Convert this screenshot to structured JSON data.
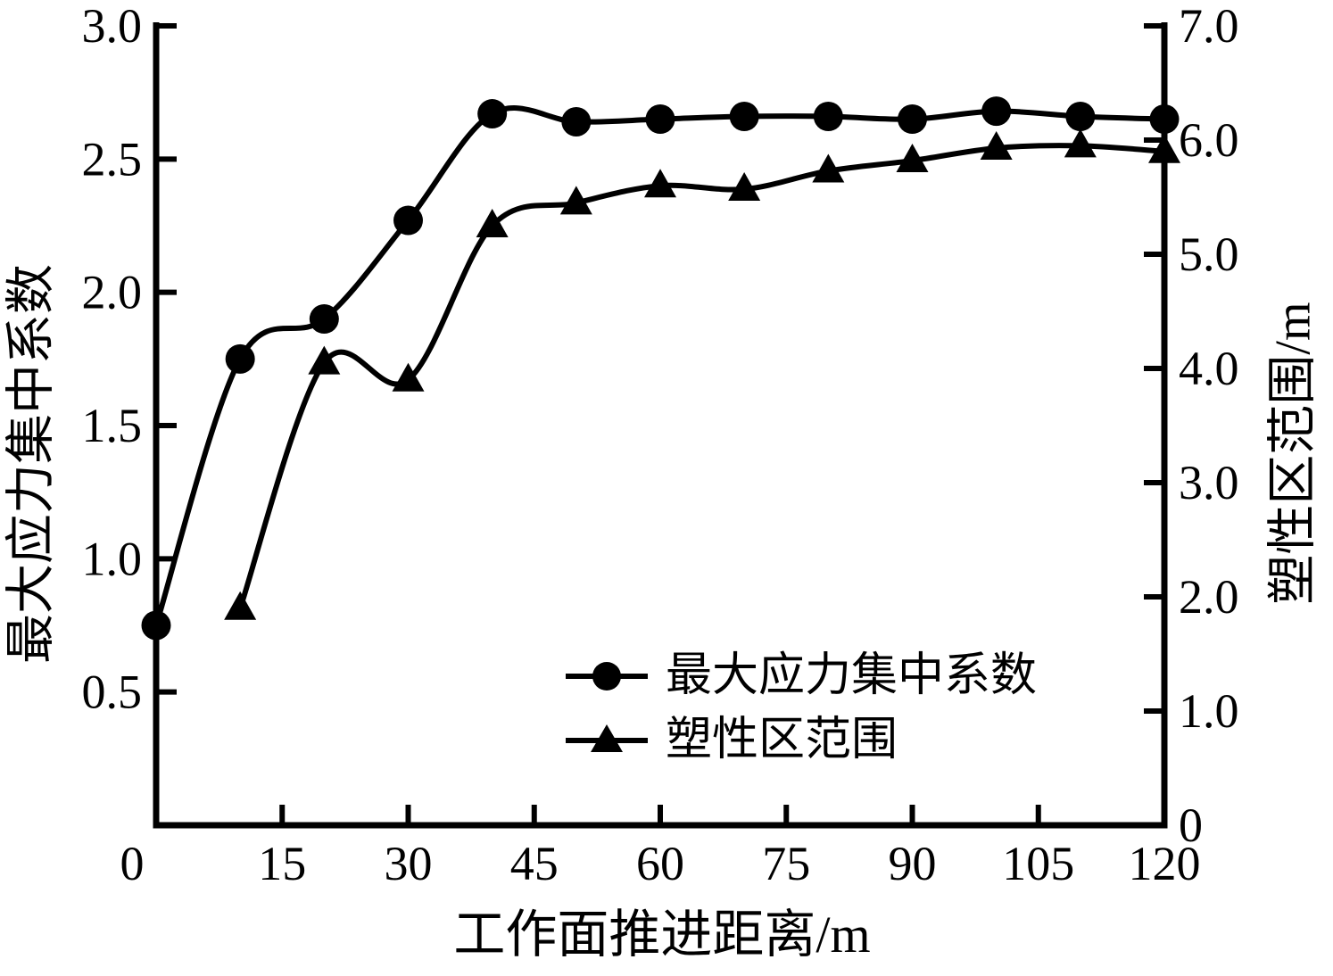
{
  "figure": {
    "background_color": "#ffffff",
    "ink_color": "#000000"
  },
  "chart_data": {
    "type": "line",
    "title": "",
    "xlabel": "工作面推进距离/m",
    "ylabel_left": "最大应力集中系数",
    "ylabel_right": "塑性区范围/m",
    "grid": "off",
    "spines": [
      "left",
      "right",
      "bottom"
    ],
    "tick_direction": "in",
    "x_axis": {
      "min": 0,
      "max": 120,
      "tick_labels": [
        "0",
        "15",
        "30",
        "45",
        "60",
        "75",
        "90",
        "105",
        "120"
      ]
    },
    "y_axis_left": {
      "min": 0,
      "max": 3.0,
      "tick_labels": [
        "3.0",
        "2.5",
        "2.0",
        "1.5",
        "1.0",
        "0.5"
      ]
    },
    "y_axis_right": {
      "min": 0,
      "max": 7.0,
      "tick_labels": [
        "7.0",
        "6.0",
        "5.0",
        "4.0",
        "3.0",
        "2.0",
        "1.0",
        "0"
      ]
    },
    "legend": {
      "position": "inside-lower-right",
      "entries": [
        {
          "marker": "filled-circle",
          "label": "最大应力集中系数"
        },
        {
          "marker": "filled-triangle",
          "label": "塑性区范围"
        }
      ]
    },
    "series": [
      {
        "name": "最大应力集中系数",
        "axis": "left",
        "marker": "filled-circle",
        "line_style": "solid",
        "color": "#000000",
        "points": [
          [
            0,
            0.75
          ],
          [
            10,
            1.75
          ],
          [
            20,
            1.9
          ],
          [
            30,
            2.27
          ],
          [
            40,
            2.67
          ],
          [
            50,
            2.64
          ],
          [
            60,
            2.65
          ],
          [
            70,
            2.66
          ],
          [
            80,
            2.66
          ],
          [
            90,
            2.65
          ],
          [
            100,
            2.68
          ],
          [
            110,
            2.66
          ],
          [
            120,
            2.65
          ]
        ]
      },
      {
        "name": "塑性区范围",
        "axis": "right",
        "marker": "filled-triangle",
        "line_style": "solid",
        "color": "#000000",
        "points": [
          [
            10,
            1.9
          ],
          [
            20,
            4.05
          ],
          [
            30,
            3.9
          ],
          [
            40,
            5.25
          ],
          [
            50,
            5.45
          ],
          [
            60,
            5.6
          ],
          [
            70,
            5.57
          ],
          [
            80,
            5.73
          ],
          [
            90,
            5.82
          ],
          [
            100,
            5.93
          ],
          [
            110,
            5.95
          ],
          [
            120,
            5.9
          ]
        ]
      }
    ]
  }
}
